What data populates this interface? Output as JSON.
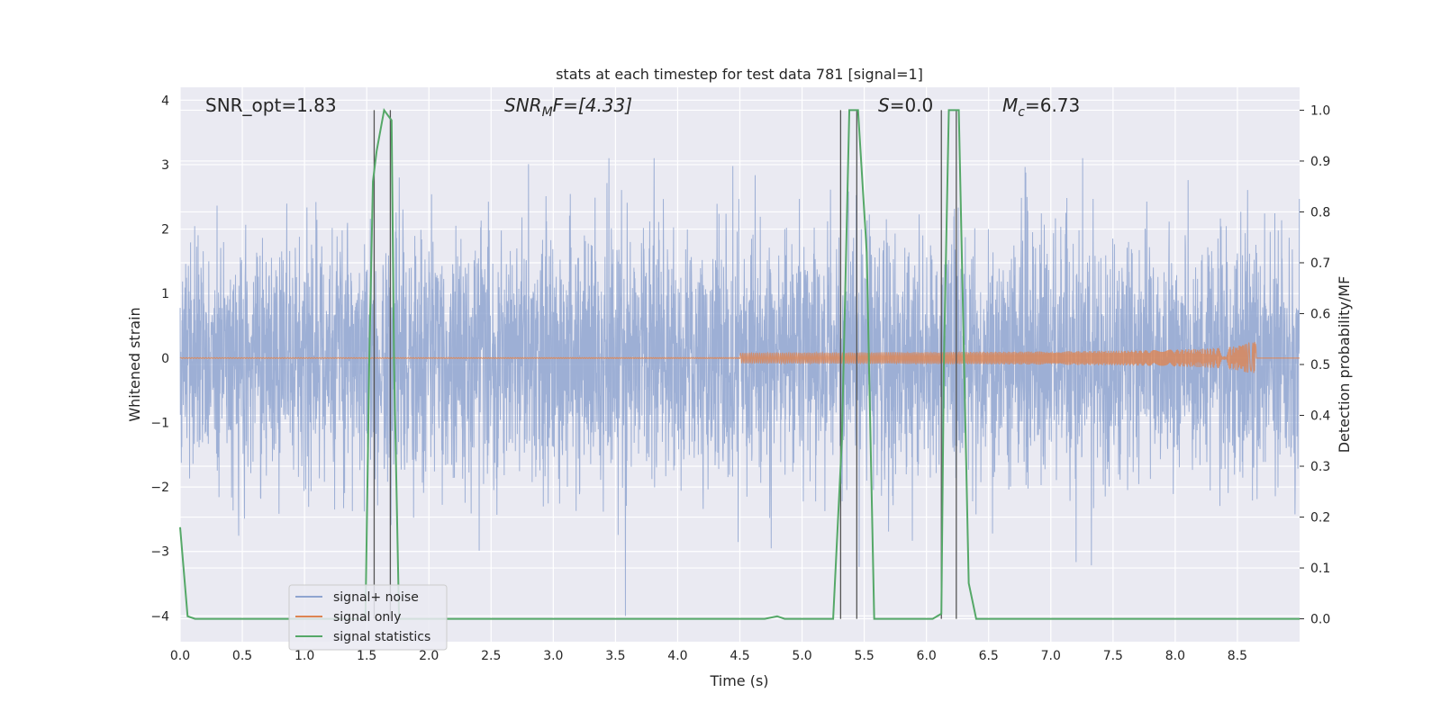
{
  "chart_data": {
    "type": "line",
    "title": "stats at each timestep for test data 781 [signal=1]",
    "xlabel": "Time (s)",
    "ylabel": "Whitened strain",
    "y2label": "Detection probability/MF",
    "xlim": [
      0,
      9.0
    ],
    "ylim": [
      -4.4,
      4.2
    ],
    "y2lim": [
      -0.045,
      1.045
    ],
    "xticks": [
      "0.0",
      "0.5",
      "1.0",
      "1.5",
      "2.0",
      "2.5",
      "3.0",
      "3.5",
      "4.0",
      "4.5",
      "5.0",
      "5.5",
      "6.0",
      "6.5",
      "7.0",
      "7.5",
      "8.0",
      "8.5"
    ],
    "yticks": [
      "−4",
      "−3",
      "−2",
      "−1",
      "0",
      "1",
      "2",
      "3",
      "4"
    ],
    "y2ticks": [
      "0.0",
      "0.1",
      "0.2",
      "0.3",
      "0.4",
      "0.5",
      "0.6",
      "0.7",
      "0.8",
      "0.9",
      "1.0"
    ],
    "grid": true,
    "legend_position": "lower-left",
    "annotations": {
      "snr_opt": "SNR_opt=1.83",
      "snr_mf_main": "SNR",
      "snr_mf_sub": "M",
      "snr_mf_rest": "F=[4.33]",
      "s_main": "S",
      "s_rest": "=0.0",
      "mc_main": "M",
      "mc_sub": "c",
      "mc_rest": "=6.73"
    },
    "series": [
      {
        "name": "signal+ noise",
        "color": "#8fa5d0",
        "sample_rate_hz": 512,
        "envelope_max": 3.1,
        "envelope_min": -4.0
      },
      {
        "name": "signal only",
        "color": "#dd8452",
        "chirp_end_time": 8.65,
        "final_amplitude": 0.25
      },
      {
        "name": "signal statistics",
        "color": "#55a868",
        "x": [
          0.0,
          0.06,
          0.12,
          0.2,
          1.0,
          1.49,
          1.52,
          1.55,
          1.58,
          1.64,
          1.7,
          1.72,
          1.76,
          4.7,
          4.8,
          4.86,
          5.0,
          5.25,
          5.32,
          5.38,
          5.45,
          5.52,
          5.58,
          5.62,
          6.05,
          6.12,
          6.14,
          6.18,
          6.26,
          6.34,
          6.4,
          6.45,
          9.0
        ],
        "y": [
          0.18,
          0.005,
          0.0,
          0.0,
          0.0,
          0.0,
          0.5,
          0.86,
          0.92,
          1.0,
          0.98,
          0.5,
          0.0,
          0.0,
          0.005,
          0.0,
          0.0,
          0.0,
          0.35,
          1.0,
          1.0,
          0.72,
          0.0,
          0.0,
          0.0,
          0.01,
          0.5,
          1.0,
          1.0,
          0.07,
          0.0,
          0.0,
          0.0
        ]
      }
    ],
    "vlines": [
      1.56,
      1.69,
      5.31,
      5.44,
      6.12,
      6.24
    ]
  }
}
